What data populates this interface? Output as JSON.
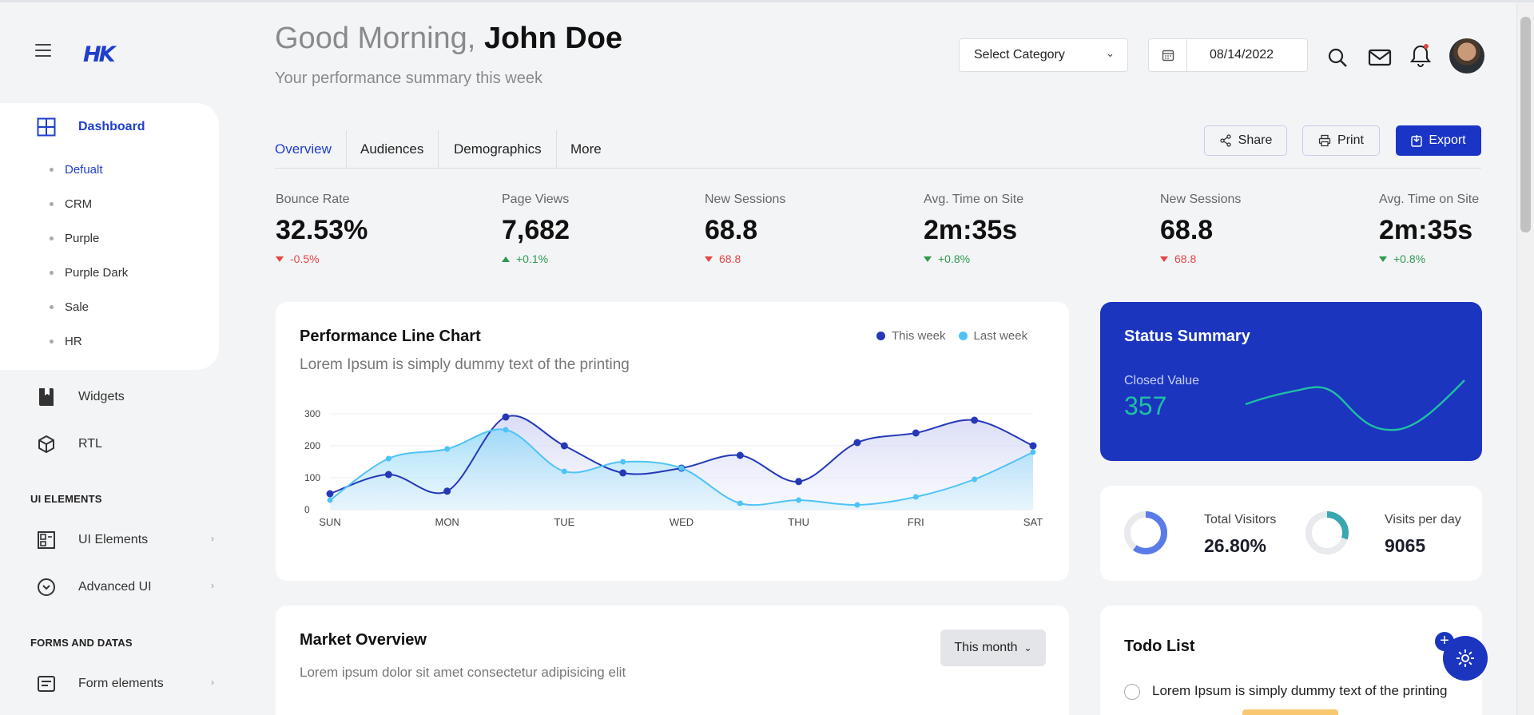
{
  "sidebar": {
    "logo": "HK",
    "dashboard": {
      "label": "Dashboard",
      "items": [
        "Defualt",
        "CRM",
        "Purple",
        "Purple Dark",
        "Sale",
        "HR"
      ]
    },
    "widgets": "Widgets",
    "rtl": "RTL",
    "section_ui": "UI ELEMENTS",
    "ui_elements": "UI Elements",
    "advanced_ui": "Advanced UI",
    "section_forms": "FORMS AND DATAS",
    "form_elements": "Form elements"
  },
  "header": {
    "greeting": "Good Morning,",
    "user": "John Doe",
    "subtitle": "Your performance summary this week",
    "category": "Select Category",
    "date": "08/14/2022"
  },
  "tabs": [
    "Overview",
    "Audiences",
    "Demographics",
    "More"
  ],
  "actions": {
    "share": "Share",
    "print": "Print",
    "export": "Export"
  },
  "stats": [
    {
      "label": "Bounce Rate",
      "value": "32.53%",
      "change": "-0.5%",
      "dir": "down"
    },
    {
      "label": "Page Views",
      "value": "7,682",
      "change": "+0.1%",
      "dir": "up"
    },
    {
      "label": "New Sessions",
      "value": "68.8",
      "change": "68.8",
      "dir": "down"
    },
    {
      "label": "Avg. Time on Site",
      "value": "2m:35s",
      "change": "+0.8%",
      "dir": "up"
    },
    {
      "label": "New Sessions",
      "value": "68.8",
      "change": "68.8",
      "dir": "down"
    },
    {
      "label": "Avg. Time on Site",
      "value": "2m:35s",
      "change": "+0.8%",
      "dir": "up"
    }
  ],
  "performance": {
    "title": "Performance Line Chart",
    "subtitle": "Lorem Ipsum is simply dummy text of the printing"
  },
  "chart_data": {
    "type": "area",
    "x_labels": [
      "SUN",
      "MON",
      "TUE",
      "WED",
      "THU",
      "FRI",
      "SAT"
    ],
    "x": [
      0,
      0.5,
      1,
      1.5,
      2,
      2.5,
      3,
      3.5,
      4,
      4.5,
      5,
      5.5,
      6
    ],
    "yticks": [
      0,
      100,
      200,
      300
    ],
    "ylim": [
      0,
      300
    ],
    "series": [
      {
        "name": "This week",
        "color": "#2538b8",
        "values": [
          50,
          110,
          58,
          290,
          200,
          115,
          130,
          170,
          88,
          210,
          240,
          280,
          200
        ]
      },
      {
        "name": "Last week",
        "color": "#4fc3f7",
        "values": [
          30,
          160,
          190,
          250,
          120,
          150,
          130,
          20,
          30,
          15,
          40,
          95,
          180
        ]
      }
    ],
    "grid": true,
    "legend": "top-right"
  },
  "status": {
    "title": "Status Summary",
    "label": "Closed Value",
    "value": "357"
  },
  "visitors": [
    {
      "label": "Total Visitors",
      "value": "26.80%",
      "fraction": 0.6
    },
    {
      "label": "Visits per day",
      "value": "9065",
      "fraction": 0.3
    }
  ],
  "market": {
    "title": "Market Overview",
    "subtitle": "Lorem ipsum dolor sit amet consectetur adipisicing elit",
    "filter": "This month"
  },
  "todo": {
    "title": "Todo List",
    "item": "Lorem Ipsum is simply dummy text of the printing"
  },
  "colors": {
    "accent": "#1a35c5",
    "green": "#2e9a4e",
    "red": "#e64545",
    "light": "#4fc3f7"
  }
}
